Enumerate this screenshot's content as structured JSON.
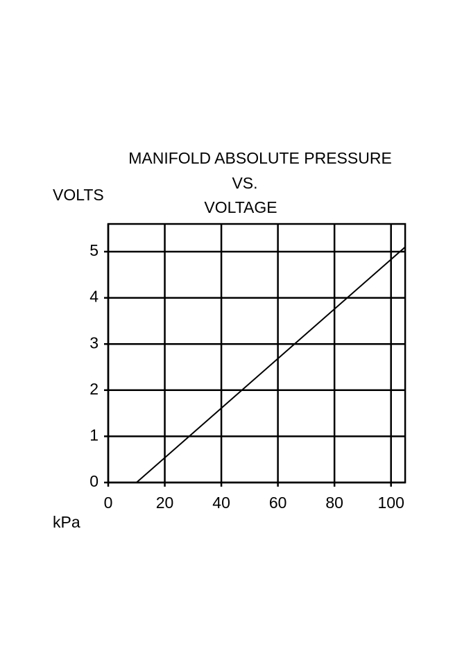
{
  "chart_data": {
    "type": "line",
    "title": [
      "MANIFOLD ABSOLUTE PRESSURE",
      "VS.",
      "VOLTAGE"
    ],
    "y_label": "VOLTS",
    "x_label": "kPa",
    "x": [
      10,
      105
    ],
    "series": [
      {
        "color": "#000000",
        "values": [
          0,
          5.1
        ]
      }
    ],
    "xlim": [
      0,
      105
    ],
    "xticks": [
      0,
      20,
      40,
      60,
      80,
      100
    ],
    "ylim": [
      0,
      5.6
    ],
    "yticks": [
      0,
      1,
      2,
      3,
      4,
      5
    ],
    "grid": true
  }
}
